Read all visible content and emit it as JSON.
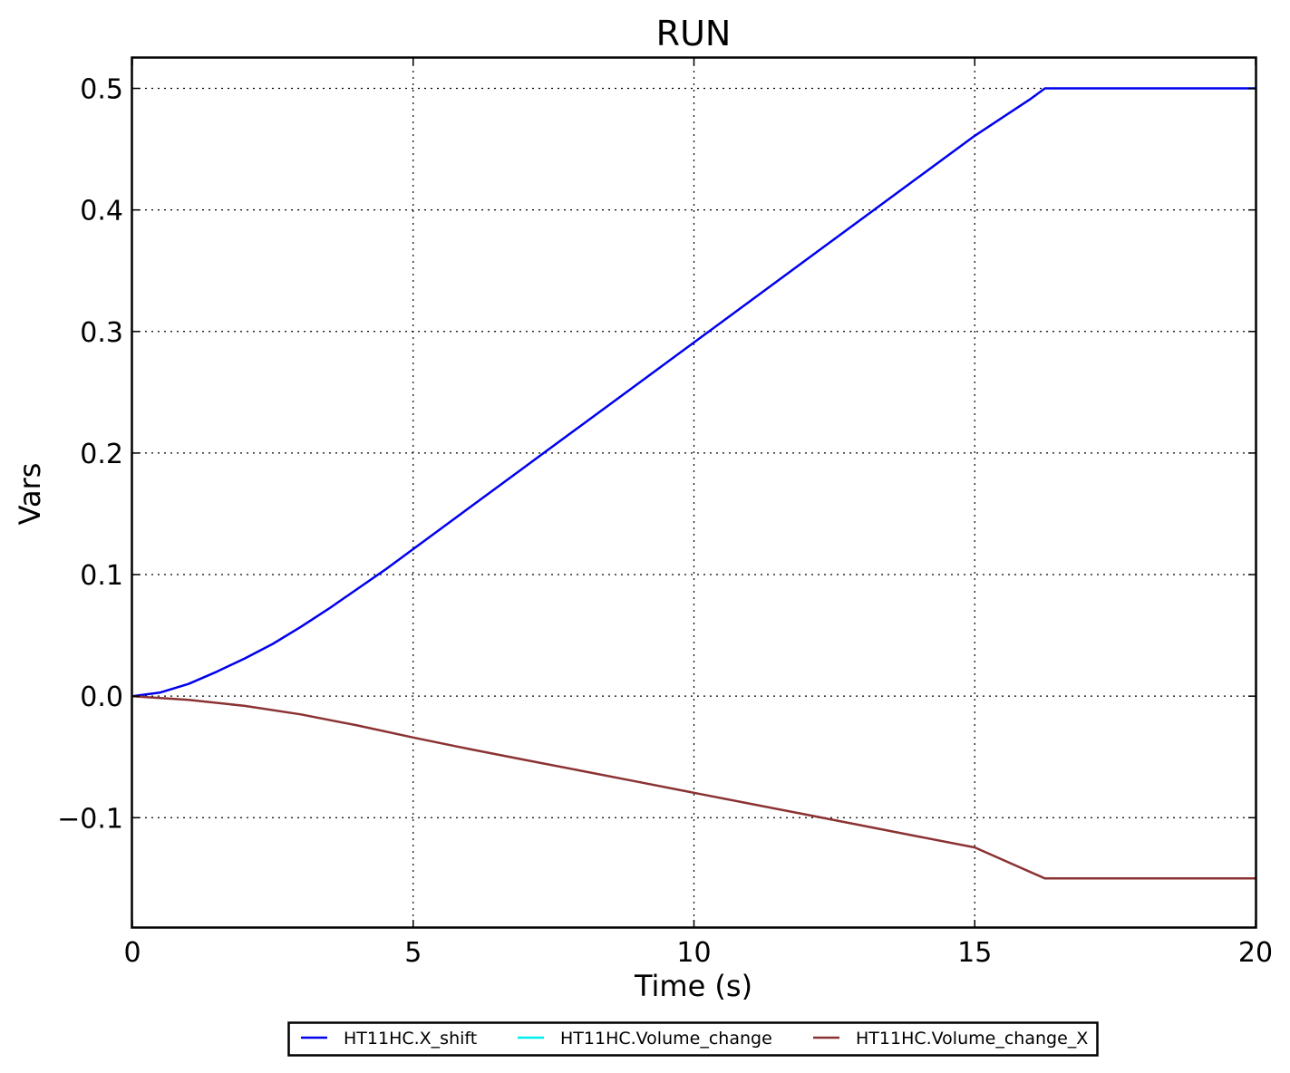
{
  "chart_data": {
    "type": "line",
    "title": "RUN",
    "xlabel": "Time (s)",
    "ylabel": "Vars",
    "xlim": [
      0,
      20
    ],
    "ylim": [
      -0.19,
      0.525
    ],
    "xticks": [
      0,
      5,
      10,
      15,
      20
    ],
    "xtick_labels": [
      "0",
      "5",
      "10",
      "15",
      "20"
    ],
    "yticks": [
      0.5,
      0.4,
      0.3,
      0.2,
      0.1,
      0.0,
      -0.1
    ],
    "ytick_labels": [
      "0.5",
      "0.4",
      "0.3",
      "0.2",
      "0.1",
      "0.0",
      "−0.1"
    ],
    "grid": true,
    "legend_position": "bottom-center",
    "series": [
      {
        "name": "HT11HC.X_shift",
        "color": "#0000ee",
        "x": [
          0,
          0.5,
          1,
          1.5,
          2,
          2.5,
          3,
          3.5,
          4,
          4.5,
          5,
          6,
          7,
          8,
          9,
          10,
          11,
          12,
          13,
          14,
          15,
          16,
          16.25,
          17,
          18,
          19,
          20
        ],
        "y": [
          0,
          0.003,
          0.01,
          0.02,
          0.031,
          0.043,
          0.057,
          0.072,
          0.088,
          0.104,
          0.121,
          0.155,
          0.189,
          0.223,
          0.257,
          0.291,
          0.325,
          0.359,
          0.393,
          0.427,
          0.461,
          0.4915,
          0.5,
          0.5,
          0.5,
          0.5,
          0.5
        ]
      },
      {
        "name": "HT11HC.Volume_change",
        "color": "#00eeee",
        "x": [],
        "y": []
      },
      {
        "name": "HT11HC.Volume_change_X",
        "color": "#8b3232",
        "x": [
          0,
          1,
          2,
          3,
          4,
          5,
          6,
          7,
          8,
          9,
          10,
          11,
          12,
          13,
          14,
          15,
          16.25,
          17,
          18,
          19,
          20
        ],
        "y": [
          0,
          -0.003,
          -0.008,
          -0.015,
          -0.024,
          -0.034,
          -0.0435,
          -0.0525,
          -0.0615,
          -0.0705,
          -0.0795,
          -0.0885,
          -0.0975,
          -0.1065,
          -0.1155,
          -0.1245,
          -0.15,
          -0.15,
          -0.15,
          -0.15,
          -0.15
        ]
      }
    ]
  }
}
